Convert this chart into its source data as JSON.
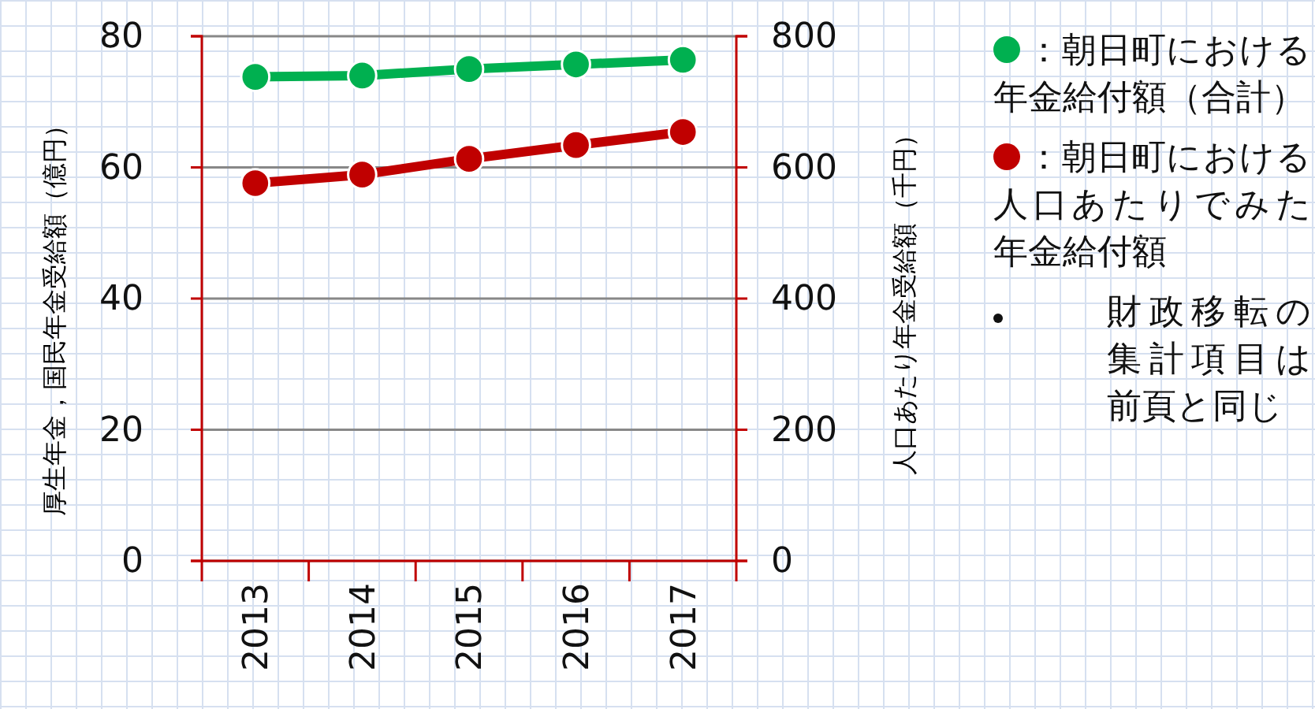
{
  "chart_data": {
    "type": "line",
    "categories": [
      "2013",
      "2014",
      "2015",
      "2016",
      "2017"
    ],
    "series": [
      {
        "name": "：朝日町における年金給付額（合計）",
        "color": "#00b050",
        "values": [
          73.8,
          74.0,
          75.0,
          75.7,
          76.4
        ]
      },
      {
        "name": "：朝日町における人口あたりでみた年金給付額",
        "color": "#c00000",
        "values": [
          576,
          589,
          613,
          634,
          654
        ],
        "axis": "y2"
      }
    ],
    "ylabel": "厚生年金，国民年金受給額（億円）",
    "y2label": "人口あたり年金受給額（千円）",
    "ylim": [
      0,
      80
    ],
    "yticks": [
      0,
      20,
      40,
      60,
      80
    ],
    "y2lim": [
      0,
      800
    ],
    "y2ticks": [
      0,
      200,
      400,
      600,
      800
    ],
    "grid": "y",
    "legend": "right",
    "marker": "circle",
    "line_style": "solid",
    "annotations": [
      "財政移転の集計項目は前頁と同じ"
    ]
  }
}
